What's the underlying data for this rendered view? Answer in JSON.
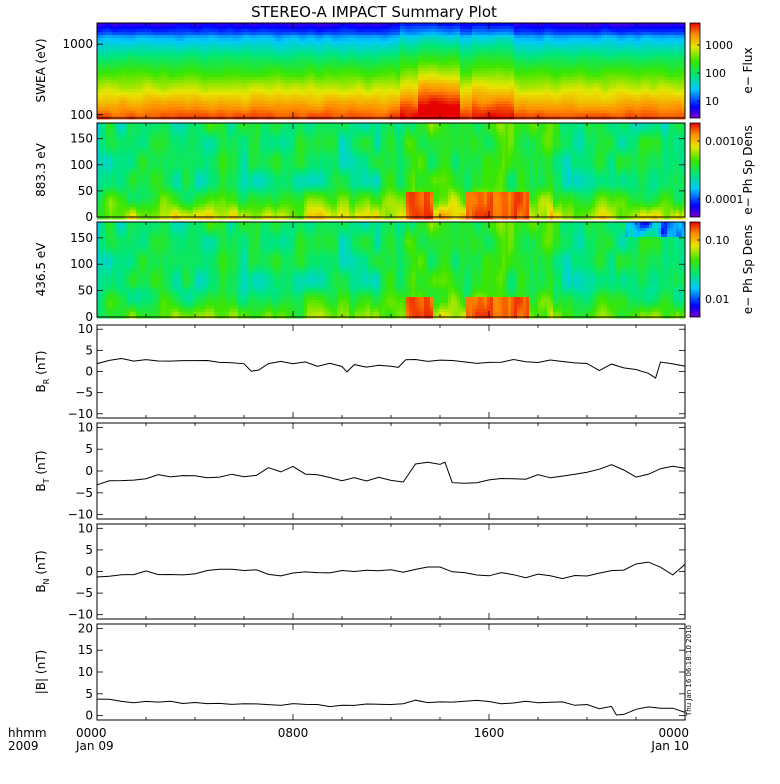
{
  "title": "STEREO-A IMPACT Summary Plot",
  "x_axis": {
    "row1_label": "hhmm",
    "row2_label": "2009",
    "ticks": [
      {
        "hours": 0,
        "time": "0000",
        "date": "Jan 09"
      },
      {
        "hours": 8,
        "time": "0800",
        "date": ""
      },
      {
        "hours": 16,
        "time": "1600",
        "date": ""
      },
      {
        "hours": 24,
        "time": "0000",
        "date": "Jan 10"
      }
    ]
  },
  "timestamp": "Thu Jan 16 06:18:10 2010",
  "panels": [
    {
      "id": "swea",
      "ylabel": "SWEA (eV)",
      "scale": "log",
      "yticks": [
        "1000",
        "100"
      ],
      "colorbar": {
        "label": "e− Flux",
        "ticks": [
          "1000",
          "100",
          "10"
        ]
      }
    },
    {
      "id": "pad883",
      "ylabel": "883.3 eV",
      "yticks": [
        "150",
        "100",
        "50",
        "0"
      ],
      "colorbar": {
        "label": "e− Ph Sp Dens",
        "ticks": [
          "0.0010",
          "0.0001"
        ]
      }
    },
    {
      "id": "pad436",
      "ylabel": "436.5 eV",
      "yticks": [
        "150",
        "100",
        "50",
        "0"
      ],
      "colorbar": {
        "label": "e− Ph Sp Dens",
        "ticks": [
          "0.10",
          "0.01"
        ]
      }
    },
    {
      "id": "br",
      "ylabel_main": "B",
      "ylabel_sub": "R",
      "ylabel_unit": " (nT)",
      "yticks": [
        "10",
        "5",
        "0",
        "−5",
        "−10"
      ]
    },
    {
      "id": "bt",
      "ylabel_main": "B",
      "ylabel_sub": "T",
      "ylabel_unit": " (nT)",
      "yticks": [
        "10",
        "5",
        "0",
        "−5",
        "−10"
      ]
    },
    {
      "id": "bn",
      "ylabel_main": "B",
      "ylabel_sub": "N",
      "ylabel_unit": " (nT)",
      "yticks": [
        "10",
        "5",
        "0",
        "−5",
        "−10"
      ]
    },
    {
      "id": "bmag",
      "ylabel_main": "|B| (nT)",
      "ylabel_sub": "",
      "ylabel_unit": "",
      "yticks": [
        "20",
        "15",
        "10",
        "5",
        "0"
      ]
    }
  ],
  "chart_data": [
    {
      "type": "heatmap",
      "title": "STEREO-A IMPACT Summary Plot",
      "ylabel": "SWEA (eV)",
      "y_scale": "log",
      "ylim": [
        90,
        2000
      ],
      "xlim_hours": [
        0,
        24
      ],
      "colorbar_label": "e− Flux",
      "colorbar_scale": "log",
      "colorbar_range": [
        3,
        10000
      ],
      "note": "Flux decreases with energy; enhanced low-energy flux (red) near 13.5–14.5 h"
    },
    {
      "type": "heatmap",
      "ylabel": "883.3 eV",
      "ylim": [
        0,
        180
      ],
      "xlim_hours": [
        0,
        24
      ],
      "colorbar_label": "e− Ph Sp Dens",
      "colorbar_scale": "log",
      "colorbar_range": [
        5e-05,
        0.003
      ],
      "note": "Strong field-aligned flux (red) near 0–20 deg at 12.5–13.5 h and 15–17.5 h"
    },
    {
      "type": "heatmap",
      "ylabel": "436.5 eV",
      "ylim": [
        0,
        180
      ],
      "xlim_hours": [
        0,
        24
      ],
      "colorbar_label": "e− Ph Sp Dens",
      "colorbar_scale": "log",
      "colorbar_range": [
        0.003,
        0.15
      ],
      "note": "Strong field-aligned flux (red) near 0–30 deg at 12.5–13.5 h and 15–17.5 h"
    },
    {
      "type": "line",
      "ylabel": "B_R (nT)",
      "ylim": [
        -11,
        11
      ],
      "x": [
        0,
        0.5,
        1,
        1.5,
        2,
        2.5,
        3,
        3.5,
        4,
        4.5,
        5,
        5.5,
        6,
        6.3,
        6.6,
        7,
        7.5,
        8,
        8.5,
        9,
        9.5,
        10,
        10.2,
        10.5,
        11,
        11.5,
        12,
        12.3,
        12.6,
        13,
        13.5,
        14,
        14.5,
        15,
        15.5,
        16,
        16.5,
        17,
        17.5,
        18,
        18.5,
        19,
        19.5,
        20,
        20.5,
        21,
        21.5,
        22,
        22.5,
        22.8,
        23,
        23.5,
        24
      ],
      "y": [
        2.0,
        2.5,
        2.8,
        2.6,
        3.0,
        2.7,
        2.5,
        2.6,
        2.3,
        2.5,
        2.4,
        2.2,
        2.0,
        0.2,
        0.4,
        1.8,
        2.1,
        1.9,
        2.0,
        1.5,
        1.8,
        1.3,
        0.1,
        1.5,
        1.3,
        1.6,
        1.5,
        1.0,
        2.7,
        2.8,
        2.6,
        2.5,
        2.6,
        2.5,
        2.0,
        2.3,
        2.1,
        2.6,
        2.4,
        2.3,
        2.5,
        2.2,
        2.3,
        2.0,
        0.5,
        1.5,
        0.8,
        0.5,
        -0.2,
        -1.5,
        2.0,
        1.5,
        1.0
      ]
    },
    {
      "type": "line",
      "ylabel": "B_T (nT)",
      "ylim": [
        -11,
        11
      ],
      "x": [
        0,
        0.5,
        1,
        1.5,
        2,
        2.5,
        3,
        3.5,
        4,
        4.5,
        5,
        5.5,
        6,
        6.5,
        7,
        7.5,
        8,
        8.5,
        9,
        9.5,
        10,
        10.5,
        11,
        11.5,
        12,
        12.5,
        13,
        13.5,
        14,
        14.2,
        14.5,
        15,
        15.5,
        16,
        16.5,
        17,
        17.5,
        18,
        18.5,
        19,
        19.5,
        20,
        20.5,
        21,
        21.5,
        22,
        22.5,
        23,
        23.5,
        24
      ],
      "y": [
        -3.0,
        -2.5,
        -2.0,
        -1.8,
        -1.5,
        -1.0,
        -1.2,
        -0.8,
        -1.0,
        -1.5,
        -1.2,
        -1.0,
        -1.3,
        -1.0,
        0.5,
        0.0,
        1.0,
        -0.5,
        -0.8,
        -1.5,
        -2.0,
        -1.8,
        -2.0,
        -1.5,
        -2.0,
        -2.5,
        1.5,
        2.0,
        1.8,
        2.0,
        -2.5,
        -3.0,
        -2.5,
        -2.0,
        -2.0,
        -1.5,
        -1.8,
        -1.0,
        -1.5,
        -1.0,
        -0.5,
        0.0,
        0.5,
        1.5,
        0.0,
        -1.5,
        -1.0,
        0.5,
        1.0,
        0.5
      ]
    },
    {
      "type": "line",
      "ylabel": "B_N (nT)",
      "ylim": [
        -11,
        11
      ],
      "x": [
        0,
        0.5,
        1,
        1.5,
        2,
        2.5,
        3,
        3.5,
        4,
        4.5,
        5,
        5.5,
        6,
        6.5,
        7,
        7.5,
        8,
        8.5,
        9,
        9.5,
        10,
        10.5,
        11,
        11.5,
        12,
        12.5,
        13,
        13.5,
        14,
        14.5,
        15,
        15.5,
        16,
        16.5,
        17,
        17.5,
        18,
        18.5,
        19,
        19.5,
        20,
        20.5,
        21,
        21.5,
        22,
        22.5,
        23,
        23.5,
        24
      ],
      "y": [
        -1.0,
        -1.2,
        -0.8,
        -0.5,
        0.0,
        -0.5,
        -0.8,
        -0.6,
        -0.5,
        0.0,
        0.5,
        0.8,
        0.3,
        0.5,
        -0.5,
        -0.8,
        -0.5,
        -0.3,
        -0.5,
        -0.2,
        0.0,
        0.2,
        0.5,
        0.3,
        0.5,
        0.0,
        0.3,
        1.0,
        0.8,
        0.0,
        -0.5,
        -1.0,
        -0.8,
        -0.5,
        -1.0,
        -1.2,
        -0.8,
        -1.0,
        -1.5,
        -1.2,
        -1.0,
        -0.5,
        0.0,
        0.5,
        1.5,
        2.0,
        1.0,
        -1.0,
        1.5
      ]
    },
    {
      "type": "line",
      "ylabel": "|B| (nT)",
      "ylim": [
        -1,
        21
      ],
      "x": [
        0,
        0.5,
        1,
        1.5,
        2,
        2.5,
        3,
        3.5,
        4,
        4.5,
        5,
        5.5,
        6,
        6.5,
        7,
        7.5,
        8,
        8.5,
        9,
        9.5,
        10,
        10.5,
        11,
        11.5,
        12,
        12.5,
        13,
        13.5,
        14,
        14.5,
        15,
        15.5,
        16,
        16.5,
        17,
        17.5,
        18,
        18.5,
        19,
        19.5,
        20,
        20.5,
        21,
        21.2,
        21.5,
        22,
        22.5,
        23,
        23.5,
        24
      ],
      "y": [
        3.5,
        3.6,
        3.3,
        3.2,
        3.3,
        3.0,
        3.1,
        2.9,
        3.0,
        2.8,
        2.9,
        2.7,
        2.8,
        2.5,
        2.6,
        2.4,
        2.5,
        2.4,
        2.3,
        2.2,
        2.5,
        2.3,
        2.6,
        2.4,
        2.8,
        3.0,
        3.5,
        3.2,
        3.0,
        3.2,
        3.5,
        3.3,
        3.0,
        2.8,
        3.2,
        3.0,
        2.8,
        3.0,
        2.9,
        2.5,
        2.5,
        1.5,
        2.0,
        0.4,
        0.2,
        1.5,
        2.2,
        2.0,
        1.5,
        1.0
      ]
    }
  ]
}
